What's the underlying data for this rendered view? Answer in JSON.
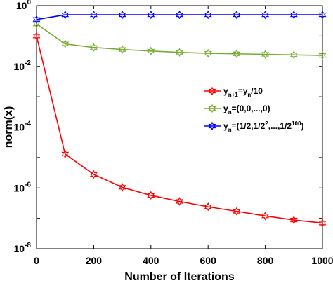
{
  "chart_data": {
    "type": "line",
    "xlabel": "Number of Iterations",
    "ylabel": "norm(x)",
    "y_scale": "log",
    "xlim": [
      0,
      1000
    ],
    "ylim": [
      1e-08,
      1
    ],
    "grid": false,
    "legend_position": "right-middle",
    "x_ticks": [
      0,
      200,
      400,
      600,
      800,
      1000
    ],
    "y_ticks": [
      1e-08,
      1e-06,
      0.0001,
      0.01,
      1
    ],
    "x_tick_labels": [
      "0",
      "200",
      "400",
      "600",
      "800",
      "1000"
    ],
    "y_tick_labels": [
      {
        "base": "10",
        "exp": "-8"
      },
      {
        "base": "10",
        "exp": "-6"
      },
      {
        "base": "10",
        "exp": "-4"
      },
      {
        "base": "10",
        "exp": "-2"
      },
      {
        "base": "10",
        "exp": "0"
      }
    ],
    "x": [
      0,
      100,
      200,
      300,
      400,
      500,
      600,
      700,
      800,
      900,
      1000
    ],
    "series": [
      {
        "key": "series-red",
        "legend": [
          {
            "t": "y"
          },
          {
            "t": "n+1",
            "s": "sub"
          },
          {
            "t": "=y"
          },
          {
            "t": "n",
            "s": "sub"
          },
          {
            "t": "/10"
          }
        ],
        "color": "#ff0000",
        "marker": "hexagram",
        "values": [
          0.1,
          1.3e-05,
          2.8e-06,
          1.05e-06,
          5.7e-07,
          3.6e-07,
          2.4e-07,
          1.7e-07,
          1.2e-07,
          8.8e-08,
          7e-08
        ]
      },
      {
        "key": "series-green",
        "legend": [
          {
            "t": "y"
          },
          {
            "t": "n",
            "s": "sub"
          },
          {
            "t": "=(0,0,...,0)"
          }
        ],
        "color": "#77ac30",
        "marker": "hexagram",
        "values": [
          0.25,
          0.055,
          0.042,
          0.036,
          0.032,
          0.029,
          0.027,
          0.026,
          0.025,
          0.024,
          0.023
        ]
      },
      {
        "key": "series-blue",
        "legend": [
          {
            "t": "y"
          },
          {
            "t": "n",
            "s": "sub"
          },
          {
            "t": "=(1/2,1/2"
          },
          {
            "t": "2",
            "s": "sup"
          },
          {
            "t": ",...,1/2"
          },
          {
            "t": "100",
            "s": "sup"
          },
          {
            "t": ")"
          }
        ],
        "color": "#0000ff",
        "marker": "hexagram",
        "values": [
          0.35,
          0.5,
          0.5,
          0.5,
          0.5,
          0.5,
          0.5,
          0.5,
          0.5,
          0.5,
          0.5
        ]
      }
    ]
  }
}
